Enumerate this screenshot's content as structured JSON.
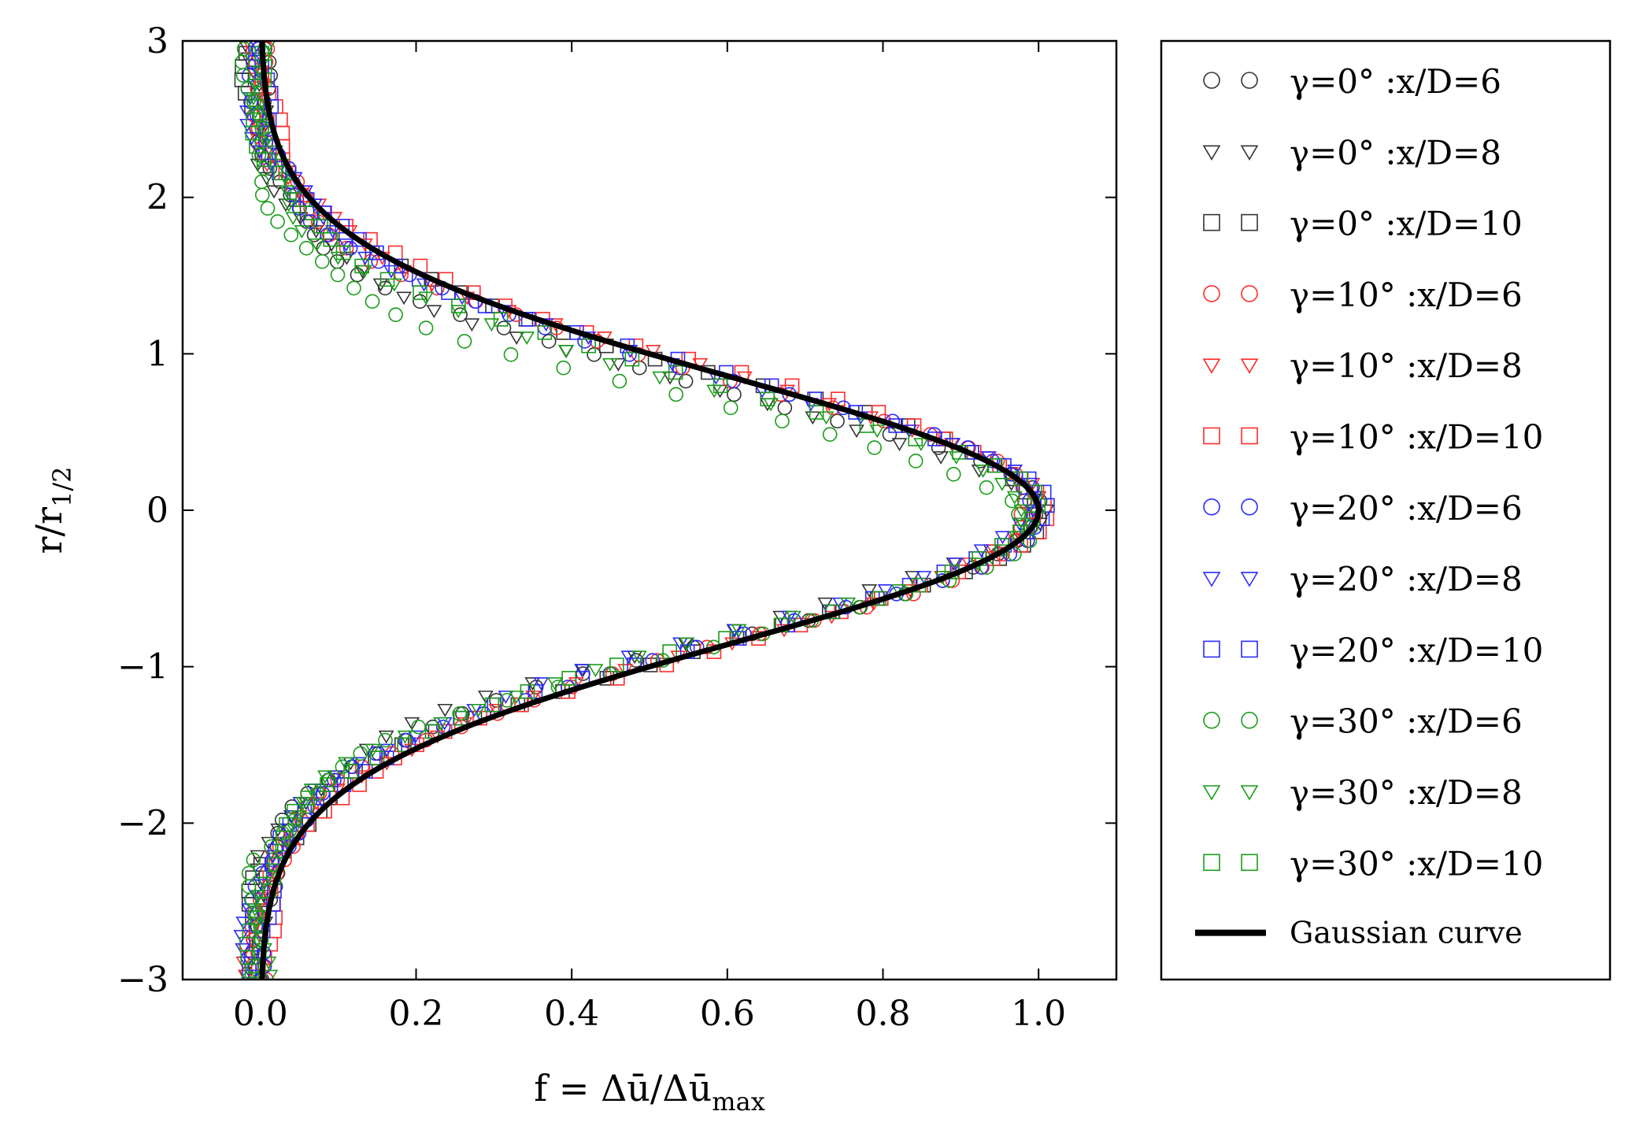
{
  "chart_data": {
    "type": "scatter",
    "xlabel": "f = Δū/Δū_max",
    "xlabel_parts": {
      "main": "f = Δū/Δū",
      "sub": "max"
    },
    "ylabel": "r/r_1/2",
    "ylabel_parts": {
      "main": "r/r",
      "sub": "1/2"
    },
    "xlim": [
      -0.1,
      1.1
    ],
    "ylim": [
      -3,
      3
    ],
    "xticks": [
      0.0,
      0.2,
      0.4,
      0.6,
      0.8,
      1.0
    ],
    "xtick_labels": [
      "0.0",
      "0.2",
      "0.4",
      "0.6",
      "0.8",
      "1.0"
    ],
    "yticks": [
      -3,
      -2,
      -1,
      0,
      1,
      2,
      3
    ],
    "ytick_labels": [
      "−3",
      "−2",
      "−1",
      "0",
      "1",
      "2",
      "3"
    ],
    "grid": false,
    "legend_position": "outside-right",
    "series": [
      {
        "name": "γ=0° :x/D=6",
        "gamma": 0,
        "xD": 6,
        "color": "#333333",
        "marker": "circle",
        "sigma": 0.74,
        "shift_top": 0.0,
        "shift_bottom": 0.06,
        "amp": 1.0
      },
      {
        "name": "γ=0° :x/D=8",
        "gamma": 0,
        "xD": 8,
        "color": "#333333",
        "marker": "triangle",
        "sigma": 0.76,
        "shift_top": -0.04,
        "shift_bottom": -0.02,
        "amp": 1.0
      },
      {
        "name": "γ=0° :x/D=10",
        "gamma": 0,
        "xD": 10,
        "color": "#333333",
        "marker": "square",
        "sigma": 0.8,
        "shift_top": 0.03,
        "shift_bottom": 0.02,
        "amp": 1.0
      },
      {
        "name": "γ=10° :x/D=6",
        "gamma": 10,
        "xD": 6,
        "color": "#ff2a2a",
        "marker": "circle",
        "sigma": 0.78,
        "shift_top": 0.05,
        "shift_bottom": 0.06,
        "amp": 0.99
      },
      {
        "name": "γ=10° :x/D=8",
        "gamma": 10,
        "xD": 8,
        "color": "#ff2a2a",
        "marker": "triangle",
        "sigma": 0.8,
        "shift_top": 0.06,
        "shift_bottom": 0.03,
        "amp": 0.99
      },
      {
        "name": "γ=10° :x/D=10",
        "gamma": 10,
        "xD": 10,
        "color": "#ff2a2a",
        "marker": "square",
        "sigma": 0.82,
        "shift_top": 0.05,
        "shift_bottom": 0.02,
        "amp": 1.0
      },
      {
        "name": "γ=20° :x/D=6",
        "gamma": 20,
        "xD": 6,
        "color": "#2a2aff",
        "marker": "circle",
        "sigma": 0.78,
        "shift_top": 0.04,
        "shift_bottom": 0.03,
        "amp": 1.0
      },
      {
        "name": "γ=20° :x/D=8",
        "gamma": 20,
        "xD": 8,
        "color": "#2a2aff",
        "marker": "triangle",
        "sigma": 0.8,
        "shift_top": 0.02,
        "shift_bottom": -0.05,
        "amp": 1.0
      },
      {
        "name": "γ=20° :x/D=10",
        "gamma": 20,
        "xD": 10,
        "color": "#2a2aff",
        "marker": "square",
        "sigma": 0.8,
        "shift_top": 0.04,
        "shift_bottom": 0.0,
        "amp": 1.0
      },
      {
        "name": "γ=30° :x/D=6",
        "gamma": 30,
        "xD": 6,
        "color": "#1a9c1a",
        "marker": "circle",
        "sigma": 0.7,
        "shift_top": -0.06,
        "shift_bottom": 0.14,
        "amp": 0.98
      },
      {
        "name": "γ=30° :x/D=8",
        "gamma": 30,
        "xD": 8,
        "color": "#1a9c1a",
        "marker": "triangle",
        "sigma": 0.76,
        "shift_top": -0.02,
        "shift_bottom": 0.02,
        "amp": 0.99
      },
      {
        "name": "γ=30° :x/D=10",
        "gamma": 30,
        "xD": 10,
        "color": "#1a9c1a",
        "marker": "square",
        "sigma": 0.78,
        "shift_top": -0.01,
        "shift_bottom": 0.01,
        "amp": 1.0
      }
    ],
    "reference_curve": {
      "name": "Gaussian curve",
      "color": "#000000",
      "formula": "f = exp(-ln2 * (r/r_1/2)^2)",
      "y_samples": [
        -3,
        -2.75,
        -2.5,
        -2.25,
        -2,
        -1.75,
        -1.5,
        -1.25,
        -1,
        -0.75,
        -0.5,
        -0.25,
        0,
        0.25,
        0.5,
        0.75,
        1,
        1.25,
        1.5,
        1.75,
        2,
        2.25,
        2.5,
        2.75,
        3
      ],
      "x_values": [
        0.002,
        0.005,
        0.013,
        0.03,
        0.063,
        0.119,
        0.21,
        0.339,
        0.5,
        0.677,
        0.841,
        0.958,
        1.0,
        0.958,
        0.841,
        0.677,
        0.5,
        0.339,
        0.21,
        0.119,
        0.063,
        0.03,
        0.013,
        0.005,
        0.002
      ]
    }
  }
}
